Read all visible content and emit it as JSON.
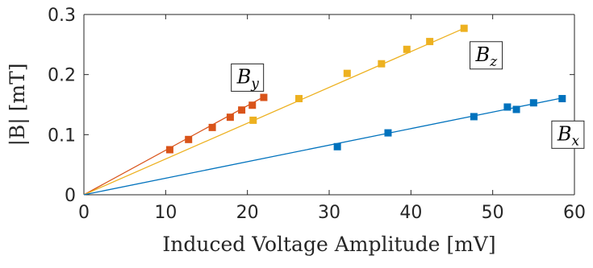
{
  "chart_data": {
    "type": "scatter",
    "xlabel": "Induced Voltage Amplitude [mV]",
    "ylabel": "|B| [mT]",
    "xlim": [
      0,
      60
    ],
    "ylim": [
      0,
      0.3
    ],
    "xticks": [
      0,
      10,
      20,
      30,
      40,
      50,
      60
    ],
    "xtick_labels": [
      "0",
      "10",
      "20",
      "30",
      "40",
      "50",
      "60"
    ],
    "yticks": [
      0,
      0.1,
      0.2,
      0.3
    ],
    "ytick_labels": [
      "0",
      "0.1",
      "0.2",
      "0.3"
    ],
    "grid": false,
    "series": [
      {
        "name": "B_y",
        "label_main": "B",
        "label_sub": "y",
        "color": "#D95319",
        "x": [
          10.5,
          12.8,
          15.7,
          17.9,
          19.3,
          20.6,
          22.0
        ],
        "y": [
          0.075,
          0.092,
          0.112,
          0.129,
          0.141,
          0.149,
          0.162
        ],
        "fit": [
          [
            0,
            0
          ],
          [
            22.0,
            0.163
          ]
        ]
      },
      {
        "name": "B_z",
        "label_main": "B",
        "label_sub": "z",
        "color": "#EDB120",
        "x": [
          20.7,
          26.3,
          32.2,
          36.4,
          39.5,
          42.3,
          46.5
        ],
        "y": [
          0.124,
          0.16,
          0.202,
          0.218,
          0.242,
          0.255,
          0.277
        ],
        "fit": [
          [
            0,
            0
          ],
          [
            46.5,
            0.277
          ]
        ]
      },
      {
        "name": "B_x",
        "label_main": "B",
        "label_sub": "x",
        "color": "#0072BD",
        "x": [
          31.0,
          37.2,
          47.7,
          51.8,
          52.9,
          55.0,
          58.5
        ],
        "y": [
          0.08,
          0.103,
          0.13,
          0.146,
          0.142,
          0.153,
          0.16
        ],
        "fit": [
          [
            0,
            0
          ],
          [
            58.5,
            0.161
          ]
        ]
      }
    ],
    "annotations": [
      {
        "series": "B_y",
        "text_main": "B",
        "text_sub": "y",
        "x": 20.0,
        "y": 0.195
      },
      {
        "series": "B_z",
        "text_main": "B",
        "text_sub": "z",
        "x": 49.2,
        "y": 0.232
      },
      {
        "series": "B_x",
        "text_main": "B",
        "text_sub": "x",
        "x": 59.2,
        "y": 0.1
      }
    ]
  }
}
